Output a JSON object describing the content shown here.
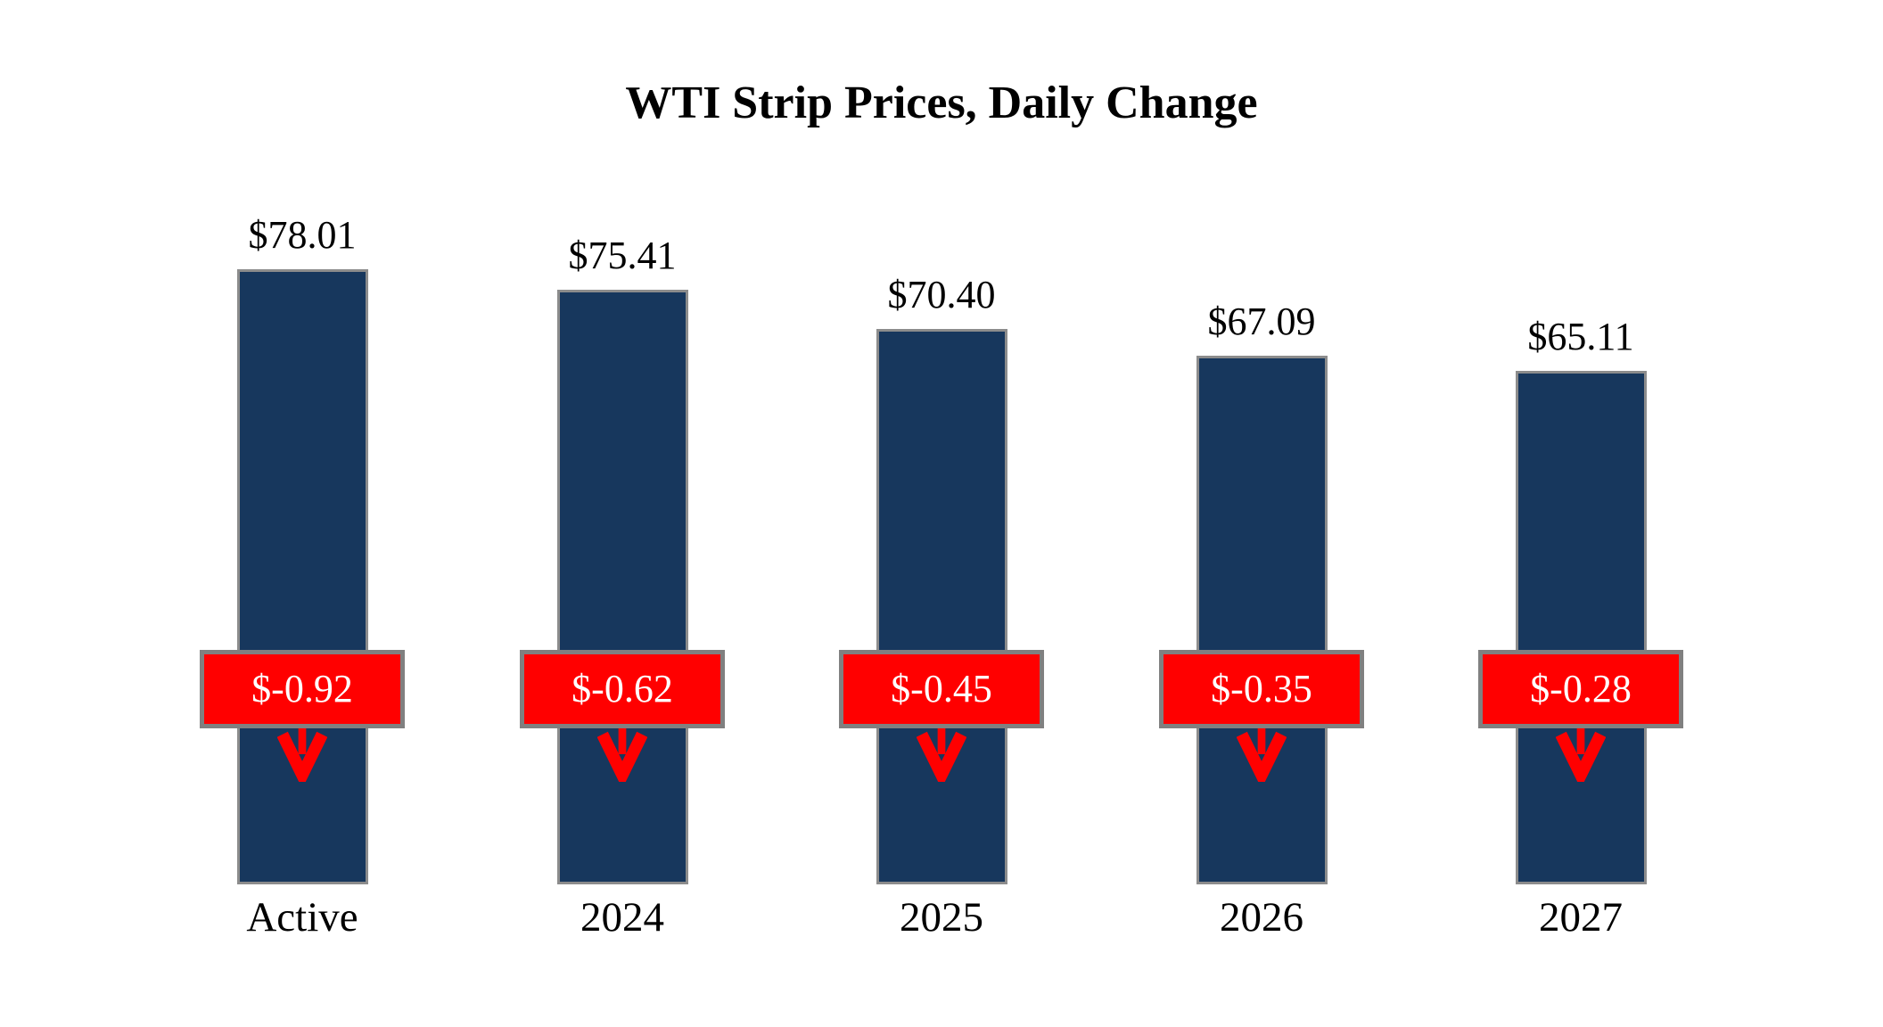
{
  "chart_data": {
    "type": "bar",
    "title": "WTI Strip Prices, Daily Change",
    "categories": [
      "Active",
      "2024",
      "2025",
      "2026",
      "2027"
    ],
    "series": [
      {
        "name": "strip-price",
        "values": [
          78.01,
          75.41,
          70.4,
          67.09,
          65.11
        ],
        "labels": [
          "$78.01",
          "$75.41",
          "$70.40",
          "$67.09",
          "$65.11"
        ]
      },
      {
        "name": "daily-change",
        "values": [
          -0.92,
          -0.62,
          -0.45,
          -0.35,
          -0.28
        ],
        "labels": [
          "$-0.92",
          "$-0.62",
          "$-0.45",
          "$-0.35",
          "$-0.28"
        ]
      }
    ],
    "xlabel": "",
    "ylabel": "",
    "ylim": [
      0,
      78.01
    ],
    "grid": false,
    "legend": "none",
    "colors": {
      "bar": "#17375D",
      "bar_border": "#8C8C8C",
      "change_fill": "#FF0000",
      "change_border": "#808080",
      "change_text": "#FFFFFF",
      "arrow": "#FF0000",
      "title_text": "#000000",
      "background": "#FFFFFF"
    }
  }
}
